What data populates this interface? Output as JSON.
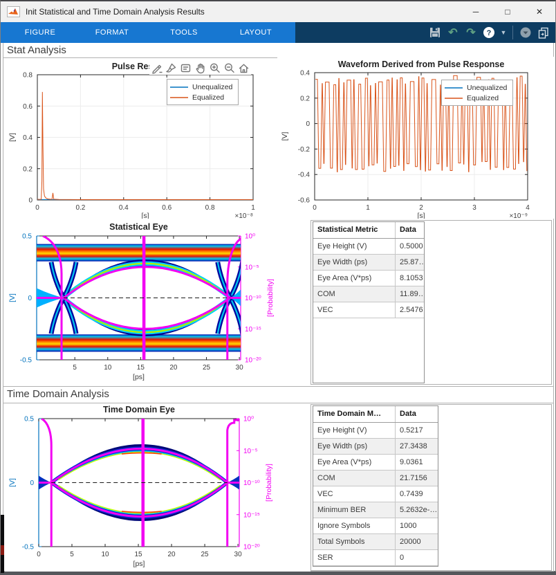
{
  "window": {
    "title": "Init Statistical and Time Domain Analysis Results",
    "controls": {
      "minimize": "─",
      "maximize": "□",
      "close": "✕"
    }
  },
  "ribbon": {
    "tabs": [
      "FIGURE",
      "FORMAT",
      "TOOLS",
      "LAYOUT"
    ],
    "right_icons": [
      "save-icon",
      "undo-icon",
      "redo-icon",
      "help-icon",
      "help-dropdown-icon",
      "separator",
      "overflow-dropdown-icon",
      "copy-figure-icon"
    ]
  },
  "sections": {
    "stat_label": "Stat Analysis",
    "time_label": "Time Domain Analysis"
  },
  "axes_toolbar": [
    "export-icon",
    "brush-icon",
    "datatips-icon",
    "pan-icon",
    "zoom-in-icon",
    "zoom-out-icon",
    "restore-view-icon"
  ],
  "legend": {
    "entries": [
      {
        "label": "Unequalized",
        "color": "#0072BD"
      },
      {
        "label": "Equalized",
        "color": "#D95319"
      }
    ]
  },
  "tables": {
    "statistical": {
      "headers": [
        "Statistical Metric",
        "Data"
      ],
      "rows": [
        [
          "Eye Height (V)",
          "0.5000"
        ],
        [
          "Eye Width (ps)",
          "25.87…"
        ],
        [
          "Eye Area (V*ps)",
          "8.1053"
        ],
        [
          "COM",
          "11.89…"
        ],
        [
          "VEC",
          "2.5476"
        ]
      ]
    },
    "time_domain": {
      "headers": [
        "Time Domain M…",
        "Data"
      ],
      "rows": [
        [
          "Eye Height (V)",
          "0.5217"
        ],
        [
          "Eye Width (ps)",
          "27.3438"
        ],
        [
          "Eye Area (V*ps)",
          "9.0361"
        ],
        [
          "COM",
          "21.7156"
        ],
        [
          "VEC",
          "0.7439"
        ],
        [
          "Minimum BER",
          "5.2632e-…"
        ],
        [
          "Ignore Symbols",
          "1000"
        ],
        [
          "Total Symbols",
          "20000"
        ],
        [
          "SER",
          "0"
        ]
      ]
    }
  },
  "colors": {
    "matlab_blue": "#0072BD",
    "matlab_orange": "#D95319",
    "magenta": "#F200F2",
    "ribbon_light": "#1777D1",
    "ribbon_dark": "#0D3C61",
    "axis_dark": "#262626",
    "grid": "#ececec"
  },
  "chart_data": [
    {
      "id": "pulse",
      "type": "line",
      "title": "Pulse Response",
      "xlabel": "[s]",
      "ylabel": "[V]",
      "x_exponent": "×10⁻⁸",
      "xlim": [
        0,
        1
      ],
      "ylim": [
        0,
        0.8
      ],
      "x_ticks": [
        "0",
        "0.2",
        "0.4",
        "0.6",
        "0.8",
        "1"
      ],
      "x_tick_vals": [
        0,
        0.2,
        0.4,
        0.6,
        0.8,
        1
      ],
      "y_ticks": [
        "0",
        "0.2",
        "0.4",
        "0.6",
        "0.8"
      ],
      "y_tick_vals": [
        0,
        0.2,
        0.4,
        0.6,
        0.8
      ],
      "grid": true,
      "legend_position": "northeast",
      "series": [
        {
          "name": "Unequalized",
          "color": "#0072BD",
          "points": [
            [
              0,
              0.002
            ],
            [
              1,
              0.002
            ]
          ]
        },
        {
          "name": "Equalized",
          "color": "#D95319",
          "points": [
            [
              0,
              0.004
            ],
            [
              0.018,
              0.004
            ],
            [
              0.021,
              0.12
            ],
            [
              0.0235,
              0.69
            ],
            [
              0.026,
              0.34
            ],
            [
              0.029,
              0.07
            ],
            [
              0.033,
              0.025
            ],
            [
              0.04,
              0.012
            ],
            [
              0.05,
              0.006
            ],
            [
              0.068,
              0.004
            ],
            [
              0.072,
              0.045
            ],
            [
              0.076,
              0.005
            ],
            [
              0.1,
              0.003
            ],
            [
              0.2,
              0.002
            ],
            [
              0.4,
              0.002
            ],
            [
              0.6,
              0.002
            ],
            [
              0.8,
              0.002
            ],
            [
              1,
              0.002
            ]
          ]
        }
      ]
    },
    {
      "id": "waveform",
      "type": "line",
      "title": "Waveform Derived from Pulse Response",
      "xlabel": "[s]",
      "ylabel": "[V]",
      "x_exponent": "×10⁻⁹",
      "xlim": [
        0,
        4
      ],
      "ylim": [
        -0.6,
        0.4
      ],
      "x_ticks": [
        "0",
        "1",
        "2",
        "3",
        "4"
      ],
      "x_tick_vals": [
        0,
        1,
        2,
        3,
        4
      ],
      "y_ticks": [
        "-0.6",
        "-0.4",
        "-0.2",
        "0",
        "0.2",
        "0.4"
      ],
      "y_tick_vals": [
        -0.6,
        -0.4,
        -0.2,
        0,
        0.2,
        0.4
      ],
      "grid": true,
      "legend_position": "northeast",
      "waveform_model": {
        "bit_pattern": "11001011100110100101110100110011010010111001101001011010011100101101001110010110100111001011011001110100101100111010011001011010",
        "amplitude_v": 0.38,
        "symbol_time_ps": 31.25
      },
      "series_names": [
        "Unequalized",
        "Equalized"
      ]
    },
    {
      "id": "stat-eye",
      "type": "eye-diagram",
      "title": "Statistical Eye",
      "xlabel": "[ps]",
      "ylabel_left": "[V]",
      "ylabel_right": "[Probability]",
      "xlim": [
        -0.8,
        30.2
      ],
      "x_ticks": [
        "5",
        "10",
        "15",
        "20",
        "25",
        "30"
      ],
      "x_tick_vals": [
        5,
        10,
        15,
        20,
        25,
        30
      ],
      "ylim_left": [
        -0.5,
        0.5
      ],
      "y_ticks_left": [
        "0.5",
        "0",
        "-0.5"
      ],
      "y_tick_vals_left": [
        0.5,
        0,
        -0.5
      ],
      "y_ticks_right": [
        "10⁰",
        "10⁻⁵",
        "10⁻¹⁰",
        "10⁻¹⁵",
        "10⁻²⁰"
      ],
      "features": {
        "crossing_left_ps": 3.3,
        "crossing_right_ps": 28.6,
        "center_ps": 15.5,
        "eye_contour_apex_v": 0.25,
        "density_outer_apex_v": 0.31,
        "density_inner_apex_v": 0.2475,
        "rail_band_v": [
          0.295,
          0.435
        ],
        "zero_line_dashed": true
      }
    },
    {
      "id": "time-eye",
      "type": "eye-diagram",
      "title": "Time Domain Eye",
      "xlabel": "[ps]",
      "ylabel_left": "[V]",
      "ylabel_right": "[Probability]",
      "xlim": [
        0,
        30.2
      ],
      "x_ticks": [
        "0",
        "5",
        "10",
        "15",
        "20",
        "25",
        "30"
      ],
      "x_tick_vals": [
        0,
        5,
        10,
        15,
        20,
        25,
        30
      ],
      "ylim_left": [
        -0.5,
        0.5
      ],
      "y_ticks_left": [
        "0.5",
        "0",
        "-0.5"
      ],
      "y_tick_vals_left": [
        0.5,
        0,
        -0.5
      ],
      "y_ticks_right": [
        "10⁰",
        "10⁻⁵",
        "10⁻¹⁰",
        "10⁻¹⁵",
        "10⁻²⁰"
      ],
      "features": {
        "crossing_left_ps": 1.9,
        "crossing_right_ps": 28.4,
        "center_ps": 15.7,
        "eye_contour_apex_v": 0.265,
        "density_outer_apex_v": 0.3,
        "density_inner_apex_v": 0.235,
        "zero_line_dashed": true
      }
    }
  ]
}
